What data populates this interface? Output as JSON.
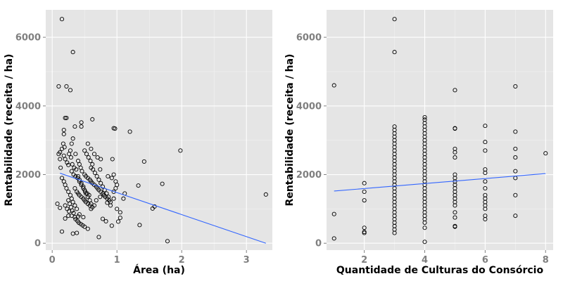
{
  "chart_data": [
    {
      "type": "scatter",
      "xlabel": "Área (ha)",
      "ylabel": "Rentabilidade (receita / ha)",
      "xlim": [
        -0.1,
        3.4
      ],
      "ylim": [
        -200,
        6800
      ],
      "xticks": [
        0,
        1,
        2,
        3
      ],
      "yticks": [
        0,
        2000,
        4000,
        6000
      ],
      "grid": true,
      "trend_line": {
        "x": [
          0.12,
          3.3
        ],
        "y": [
          2040,
          0
        ],
        "color": "#3366ff"
      },
      "points": [
        [
          0.15,
          6530
        ],
        [
          0.1,
          4570
        ],
        [
          0.22,
          4570
        ],
        [
          0.28,
          4460
        ],
        [
          0.32,
          5570
        ],
        [
          0.2,
          3650
        ],
        [
          0.22,
          3650
        ],
        [
          0.18,
          3300
        ],
        [
          0.18,
          3180
        ],
        [
          0.35,
          3400
        ],
        [
          0.45,
          3400
        ],
        [
          0.45,
          3520
        ],
        [
          0.62,
          3610
        ],
        [
          0.95,
          3350
        ],
        [
          0.97,
          3340
        ],
        [
          1.2,
          3250
        ],
        [
          1.98,
          2700
        ],
        [
          3.3,
          1420
        ],
        [
          1.78,
          60
        ],
        [
          1.58,
          1070
        ],
        [
          1.55,
          1010
        ],
        [
          1.7,
          1730
        ],
        [
          1.42,
          2380
        ],
        [
          1.33,
          1680
        ],
        [
          1.35,
          530
        ],
        [
          1.05,
          740
        ],
        [
          1.02,
          630
        ],
        [
          0.92,
          510
        ],
        [
          0.83,
          640
        ],
        [
          0.78,
          710
        ],
        [
          0.72,
          180
        ],
        [
          0.32,
          280
        ],
        [
          0.38,
          300
        ],
        [
          0.15,
          340
        ],
        [
          0.08,
          1150
        ],
        [
          0.12,
          1030
        ],
        [
          0.2,
          720
        ],
        [
          0.25,
          800
        ],
        [
          0.3,
          800
        ],
        [
          0.35,
          760
        ],
        [
          0.4,
          780
        ],
        [
          0.42,
          840
        ],
        [
          0.48,
          760
        ],
        [
          0.5,
          480
        ],
        [
          0.55,
          420
        ],
        [
          0.6,
          1000
        ],
        [
          0.65,
          1100
        ],
        [
          0.68,
          1250
        ],
        [
          0.74,
          1350
        ],
        [
          0.8,
          1400
        ],
        [
          0.85,
          1180
        ],
        [
          0.9,
          1100
        ],
        [
          0.95,
          1300
        ],
        [
          1.0,
          1000
        ],
        [
          1.05,
          900
        ],
        [
          0.12,
          2650
        ],
        [
          0.15,
          2750
        ],
        [
          0.18,
          2550
        ],
        [
          0.2,
          2450
        ],
        [
          0.23,
          2350
        ],
        [
          0.25,
          2280
        ],
        [
          0.28,
          2700
        ],
        [
          0.3,
          2900
        ],
        [
          0.32,
          3050
        ],
        [
          0.36,
          2600
        ],
        [
          0.4,
          2400
        ],
        [
          0.42,
          2300
        ],
        [
          0.44,
          2200
        ],
        [
          0.46,
          2100
        ],
        [
          0.5,
          2000
        ],
        [
          0.52,
          1950
        ],
        [
          0.55,
          1900
        ],
        [
          0.58,
          1850
        ],
        [
          0.6,
          1800
        ],
        [
          0.62,
          1750
        ],
        [
          0.65,
          1700
        ],
        [
          0.68,
          1650
        ],
        [
          0.7,
          1600
        ],
        [
          0.72,
          1550
        ],
        [
          0.75,
          1500
        ],
        [
          0.78,
          1450
        ],
        [
          0.8,
          1400
        ],
        [
          0.82,
          1350
        ],
        [
          0.85,
          1300
        ],
        [
          0.88,
          1250
        ],
        [
          0.9,
          1200
        ],
        [
          0.92,
          1900
        ],
        [
          0.95,
          2000
        ],
        [
          0.98,
          1800
        ],
        [
          1.0,
          1700
        ],
        [
          0.15,
          1900
        ],
        [
          0.18,
          1800
        ],
        [
          0.2,
          1700
        ],
        [
          0.22,
          1600
        ],
        [
          0.25,
          1500
        ],
        [
          0.28,
          1400
        ],
        [
          0.3,
          1300
        ],
        [
          0.32,
          1200
        ],
        [
          0.35,
          1100
        ],
        [
          0.38,
          1000
        ],
        [
          0.4,
          1950
        ],
        [
          0.42,
          1850
        ],
        [
          0.45,
          1750
        ],
        [
          0.48,
          1650
        ],
        [
          0.5,
          1550
        ],
        [
          0.52,
          1450
        ],
        [
          0.55,
          1350
        ],
        [
          0.58,
          1250
        ],
        [
          0.6,
          1150
        ],
        [
          0.62,
          1050
        ],
        [
          0.35,
          1600
        ],
        [
          0.38,
          1500
        ],
        [
          0.4,
          1450
        ],
        [
          0.42,
          1400
        ],
        [
          0.45,
          1350
        ],
        [
          0.48,
          1300
        ],
        [
          0.5,
          1250
        ],
        [
          0.52,
          1200
        ],
        [
          0.55,
          1150
        ],
        [
          0.58,
          1100
        ],
        [
          0.3,
          2100
        ],
        [
          0.33,
          2000
        ],
        [
          0.36,
          1950
        ],
        [
          0.39,
          1900
        ],
        [
          0.42,
          1800
        ],
        [
          0.45,
          1700
        ],
        [
          0.48,
          1600
        ],
        [
          0.51,
          1500
        ],
        [
          0.54,
          1450
        ],
        [
          0.57,
          1400
        ],
        [
          0.6,
          2200
        ],
        [
          0.63,
          2150
        ],
        [
          0.66,
          2050
        ],
        [
          0.69,
          1950
        ],
        [
          0.72,
          1850
        ],
        [
          0.75,
          1750
        ],
        [
          0.78,
          1650
        ],
        [
          0.81,
          1550
        ],
        [
          0.84,
          1450
        ],
        [
          0.87,
          1350
        ],
        [
          0.55,
          2900
        ],
        [
          0.6,
          2750
        ],
        [
          0.65,
          2600
        ],
        [
          0.7,
          2500
        ],
        [
          0.75,
          2450
        ],
        [
          0.25,
          1250
        ],
        [
          0.27,
          1150
        ],
        [
          0.29,
          1050
        ],
        [
          0.31,
          950
        ],
        [
          0.33,
          880
        ],
        [
          0.36,
          700
        ],
        [
          0.39,
          650
        ],
        [
          0.41,
          600
        ],
        [
          0.44,
          560
        ],
        [
          0.47,
          520
        ],
        [
          0.2,
          1100
        ],
        [
          0.23,
          1000
        ],
        [
          0.26,
          930
        ],
        [
          0.95,
          1500
        ],
        [
          0.98,
          1600
        ],
        [
          0.1,
          2600
        ],
        [
          0.12,
          2450
        ],
        [
          0.13,
          2200
        ],
        [
          0.17,
          2900
        ],
        [
          0.19,
          2800
        ],
        [
          0.26,
          2600
        ],
        [
          0.29,
          2500
        ],
        [
          0.31,
          2300
        ],
        [
          0.34,
          2200
        ],
        [
          0.37,
          2150
        ],
        [
          0.5,
          2700
        ],
        [
          0.53,
          2600
        ],
        [
          0.56,
          2500
        ],
        [
          0.59,
          2400
        ],
        [
          0.62,
          2300
        ],
        [
          1.1,
          1300
        ],
        [
          1.12,
          1450
        ],
        [
          0.93,
          2450
        ],
        [
          0.86,
          1950
        ],
        [
          0.74,
          2150
        ]
      ]
    },
    {
      "type": "scatter",
      "xlabel": "Quantidade de Culturas do Consórcio",
      "ylabel": "Rentabilidade (receita / ha)",
      "xlim": [
        0.75,
        8.25
      ],
      "ylim": [
        -200,
        6800
      ],
      "xticks": [
        2,
        4,
        6,
        8
      ],
      "yticks": [
        0,
        2000,
        4000,
        6000
      ],
      "grid": true,
      "trend_line": {
        "x": [
          1,
          8
        ],
        "y": [
          1520,
          2030
        ],
        "color": "#3366ff"
      },
      "points": [
        [
          1,
          4600
        ],
        [
          1,
          850
        ],
        [
          1,
          140
        ],
        [
          2,
          1750
        ],
        [
          2,
          1500
        ],
        [
          2,
          1250
        ],
        [
          2,
          450
        ],
        [
          2,
          330
        ],
        [
          2,
          300
        ],
        [
          3,
          6530
        ],
        [
          3,
          5570
        ],
        [
          3,
          3400
        ],
        [
          3,
          3300
        ],
        [
          3,
          3200
        ],
        [
          3,
          3100
        ],
        [
          3,
          3000
        ],
        [
          3,
          2900
        ],
        [
          3,
          2800
        ],
        [
          3,
          2700
        ],
        [
          3,
          2600
        ],
        [
          3,
          2500
        ],
        [
          3,
          2400
        ],
        [
          3,
          2300
        ],
        [
          3,
          2200
        ],
        [
          3,
          2100
        ],
        [
          3,
          2000
        ],
        [
          3,
          1900
        ],
        [
          3,
          1800
        ],
        [
          3,
          1700
        ],
        [
          3,
          1600
        ],
        [
          3,
          1500
        ],
        [
          3,
          1400
        ],
        [
          3,
          1300
        ],
        [
          3,
          1200
        ],
        [
          3,
          1100
        ],
        [
          3,
          1000
        ],
        [
          3,
          900
        ],
        [
          3,
          800
        ],
        [
          3,
          700
        ],
        [
          3,
          600
        ],
        [
          3,
          500
        ],
        [
          3,
          400
        ],
        [
          3,
          300
        ],
        [
          4,
          3670
        ],
        [
          4,
          3600
        ],
        [
          4,
          3500
        ],
        [
          4,
          3400
        ],
        [
          4,
          3300
        ],
        [
          4,
          3200
        ],
        [
          4,
          3100
        ],
        [
          4,
          3000
        ],
        [
          4,
          2900
        ],
        [
          4,
          2800
        ],
        [
          4,
          2700
        ],
        [
          4,
          2600
        ],
        [
          4,
          2500
        ],
        [
          4,
          2400
        ],
        [
          4,
          2300
        ],
        [
          4,
          2200
        ],
        [
          4,
          2100
        ],
        [
          4,
          2000
        ],
        [
          4,
          1900
        ],
        [
          4,
          1800
        ],
        [
          4,
          1700
        ],
        [
          4,
          1600
        ],
        [
          4,
          1500
        ],
        [
          4,
          1400
        ],
        [
          4,
          1300
        ],
        [
          4,
          1200
        ],
        [
          4,
          1100
        ],
        [
          4,
          1000
        ],
        [
          4,
          900
        ],
        [
          4,
          800
        ],
        [
          4,
          700
        ],
        [
          4,
          600
        ],
        [
          4,
          450
        ],
        [
          4,
          40
        ],
        [
          5,
          4460
        ],
        [
          5,
          3350
        ],
        [
          5,
          3340
        ],
        [
          5,
          2750
        ],
        [
          5,
          2650
        ],
        [
          5,
          2500
        ],
        [
          5,
          2000
        ],
        [
          5,
          1900
        ],
        [
          5,
          1800
        ],
        [
          5,
          1700
        ],
        [
          5,
          1600
        ],
        [
          5,
          1500
        ],
        [
          5,
          1400
        ],
        [
          5,
          1300
        ],
        [
          5,
          1200
        ],
        [
          5,
          1100
        ],
        [
          5,
          900
        ],
        [
          5,
          750
        ],
        [
          5,
          500
        ],
        [
          5,
          480
        ],
        [
          6,
          3420
        ],
        [
          6,
          2950
        ],
        [
          6,
          2700
        ],
        [
          6,
          2150
        ],
        [
          6,
          2050
        ],
        [
          6,
          1800
        ],
        [
          6,
          1600
        ],
        [
          6,
          1400
        ],
        [
          6,
          1300
        ],
        [
          6,
          1200
        ],
        [
          6,
          1100
        ],
        [
          6,
          1000
        ],
        [
          6,
          800
        ],
        [
          6,
          700
        ],
        [
          7,
          4570
        ],
        [
          7,
          3250
        ],
        [
          7,
          2750
        ],
        [
          7,
          2500
        ],
        [
          7,
          2100
        ],
        [
          7,
          1900
        ],
        [
          7,
          1400
        ],
        [
          7,
          800
        ],
        [
          8,
          2620
        ]
      ]
    }
  ]
}
